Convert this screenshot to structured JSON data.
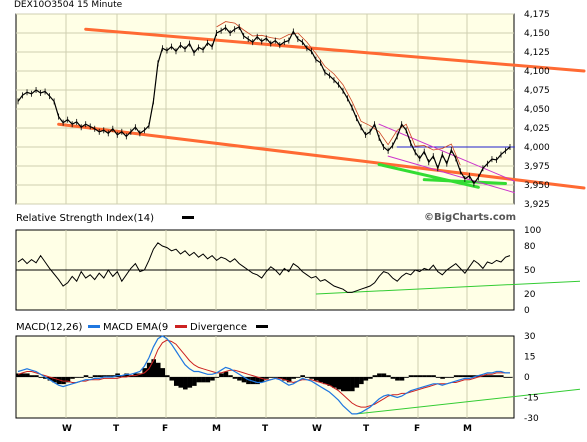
{
  "header": {
    "title": "DEX10O3504 15 Minute"
  },
  "watermark": "©BigCharts.com",
  "colors": {
    "background": "#ffffe6",
    "grid": "#cfcfb0",
    "price": "#000000",
    "channel": "#ff6a33",
    "support": "#33dd33",
    "resistance": "#2222cc",
    "wedge": "#cc33cc",
    "decline": "#cc4422",
    "macd": "#1f77e0",
    "ema": "#cc2222",
    "rsi_trend": "#33cc33"
  },
  "chart_data": [
    {
      "type": "line",
      "title": "DEX10O3504 15 Minute",
      "ylim": [
        3925,
        4175
      ],
      "y_ticks": [
        "4,175",
        "4,150",
        "4,125",
        "4,100",
        "4,075",
        "4,050",
        "4,025",
        "4,000",
        "3,975",
        "3,950",
        "3,925"
      ],
      "x_ticks": [
        "W",
        "T",
        "F",
        "M",
        "T",
        "W",
        "T",
        "F",
        "M"
      ],
      "series": [
        {
          "values": [
            4060,
            4068,
            4072,
            4070,
            4075,
            4071,
            4073,
            4067,
            4060,
            4040,
            4032,
            4036,
            4030,
            4033,
            4026,
            4030,
            4027,
            4024,
            4020,
            4022,
            4018,
            4024,
            4016,
            4020,
            4014,
            4020,
            4026,
            4018,
            4022,
            4028,
            4060,
            4110,
            4130,
            4127,
            4132,
            4126,
            4134,
            4129,
            4136,
            4124,
            4131,
            4128,
            4137,
            4132,
            4150,
            4153,
            4157,
            4150,
            4155,
            4158,
            4146,
            4142,
            4138,
            4145,
            4139,
            4143,
            4136,
            4140,
            4134,
            4138,
            4140,
            4152,
            4142,
            4138,
            4130,
            4126,
            4115,
            4111,
            4098,
            4094,
            4088,
            4082,
            4074,
            4064,
            4052,
            4038,
            4026,
            4016,
            4020,
            4030,
            4012,
            4000,
            3995,
            4002,
            4014,
            4030,
            4022,
            4005,
            3993,
            3985,
            3994,
            3980,
            3988,
            3972,
            3990,
            3978,
            3996,
            3985,
            3968,
            3958,
            3962,
            3952,
            3960,
            3972,
            3978,
            3984,
            3983,
            3990,
            3995,
            4000
          ]
        }
      ],
      "annotations": [
        {
          "name": "upper-channel-line",
          "points": [
            [
              15,
              4155
            ],
            [
              112,
              4100
            ]
          ]
        },
        {
          "name": "lower-channel-line",
          "points": [
            [
              9,
              4030
            ],
            [
              112,
              3946
            ]
          ]
        },
        {
          "name": "resistance-line",
          "points": [
            [
              84,
              4000
            ],
            [
              110,
              4000
            ]
          ]
        },
        {
          "name": "support-line",
          "points": [
            [
              80,
              3977
            ],
            [
              102,
              3947
            ]
          ]
        },
        {
          "name": "support-line-2",
          "points": [
            [
              90,
              3957
            ],
            [
              108,
              3952
            ]
          ]
        },
        {
          "name": "wedge-upper-line",
          "points": [
            [
              80,
              4030
            ],
            [
              110,
              3955
            ]
          ]
        },
        {
          "name": "wedge-lower-line",
          "points": [
            [
              82,
              3988
            ],
            [
              110,
              3940
            ]
          ]
        }
      ]
    },
    {
      "type": "line",
      "title": "Relative Strength Index(14)",
      "ylim": [
        0,
        100
      ],
      "y_ticks": [
        "100",
        "80",
        "50",
        "20",
        "0"
      ],
      "x_ticks": [
        "W",
        "T",
        "F",
        "M",
        "T",
        "W",
        "T",
        "F",
        "M"
      ],
      "reference_line": 50,
      "series": [
        {
          "values": [
            60,
            64,
            58,
            63,
            59,
            68,
            60,
            52,
            45,
            38,
            30,
            34,
            42,
            36,
            48,
            40,
            44,
            38,
            46,
            40,
            50,
            42,
            48,
            36,
            44,
            52,
            58,
            48,
            50,
            62,
            76,
            84,
            80,
            78,
            74,
            76,
            70,
            74,
            68,
            72,
            66,
            70,
            64,
            68,
            62,
            66,
            64,
            60,
            64,
            58,
            54,
            50,
            46,
            44,
            40,
            48,
            54,
            50,
            44,
            52,
            48,
            58,
            54,
            48,
            44,
            40,
            42,
            36,
            38,
            34,
            30,
            28,
            26,
            22,
            22,
            24,
            26,
            28,
            30,
            34,
            42,
            48,
            46,
            40,
            36,
            42,
            46,
            44,
            50,
            48,
            52,
            50,
            56,
            48,
            44,
            50,
            54,
            58,
            52,
            46,
            54,
            62,
            58,
            52,
            60,
            58,
            62,
            60,
            66,
            68
          ]
        }
      ],
      "annotations": [
        {
          "name": "rsi-trend-line",
          "points": [
            [
              66,
              20
            ],
            [
              112,
              36
            ]
          ]
        }
      ]
    },
    {
      "type": "line",
      "title": "MACD(12,26)",
      "ylim": [
        -30,
        30
      ],
      "y_ticks": [
        "30",
        "15",
        "0",
        "-15",
        "-30"
      ],
      "x_ticks": [
        "W",
        "T",
        "F",
        "M",
        "T",
        "W",
        "T",
        "F",
        "M"
      ],
      "series": [
        {
          "name": "MACD EMA(9",
          "values": [
            2,
            3,
            4,
            4,
            3,
            2,
            1,
            0,
            -1,
            -2,
            -3,
            -3,
            -4,
            -4,
            -3,
            -3,
            -2,
            -2,
            -2,
            -1,
            -1,
            -1,
            -1,
            0,
            0,
            1,
            1,
            2,
            3,
            6,
            12,
            20,
            25,
            27,
            26,
            24,
            20,
            16,
            12,
            9,
            7,
            6,
            5,
            4,
            3,
            3,
            4,
            5,
            5,
            4,
            3,
            2,
            1,
            0,
            -1,
            -2,
            -2,
            -1,
            -1,
            -2,
            -3,
            -4,
            -3,
            -2,
            -2,
            -2,
            -3,
            -4,
            -5,
            -6,
            -8,
            -10,
            -13,
            -16,
            -19,
            -21,
            -22,
            -22,
            -21,
            -20,
            -18,
            -16,
            -14,
            -13,
            -13,
            -12,
            -12,
            -11,
            -10,
            -9,
            -8,
            -7,
            -6,
            -5,
            -5,
            -5,
            -4,
            -4,
            -3,
            -2,
            -2,
            -1,
            0,
            1,
            2,
            2,
            3,
            3,
            3,
            3
          ]
        },
        {
          "name": "MACD",
          "values": [
            4,
            5,
            6,
            5,
            4,
            2,
            0,
            -2,
            -4,
            -6,
            -7,
            -6,
            -5,
            -4,
            -3,
            -2,
            -2,
            -1,
            -1,
            0,
            0,
            0,
            1,
            1,
            2,
            2,
            3,
            4,
            8,
            14,
            22,
            28,
            30,
            28,
            24,
            19,
            14,
            9,
            6,
            4,
            4,
            3,
            2,
            2,
            3,
            5,
            7,
            6,
            4,
            2,
            0,
            -2,
            -3,
            -4,
            -4,
            -3,
            -2,
            -1,
            -2,
            -4,
            -6,
            -5,
            -3,
            -1,
            -2,
            -3,
            -5,
            -7,
            -9,
            -11,
            -14,
            -17,
            -21,
            -24,
            -27,
            -27,
            -26,
            -24,
            -22,
            -19,
            -16,
            -14,
            -13,
            -14,
            -15,
            -14,
            -12,
            -10,
            -9,
            -8,
            -7,
            -6,
            -5,
            -5,
            -6,
            -5,
            -4,
            -3,
            -2,
            -1,
            -1,
            0,
            1,
            2,
            3,
            3,
            4,
            4,
            3,
            3
          ]
        }
      ],
      "legend": [
        "MACD(12,26)",
        "MACD EMA(9",
        "Divergence"
      ],
      "annotations": [
        {
          "name": "macd-trend-line",
          "points": [
            [
              75,
              -27
            ],
            [
              112,
              -9
            ]
          ]
        }
      ]
    }
  ]
}
